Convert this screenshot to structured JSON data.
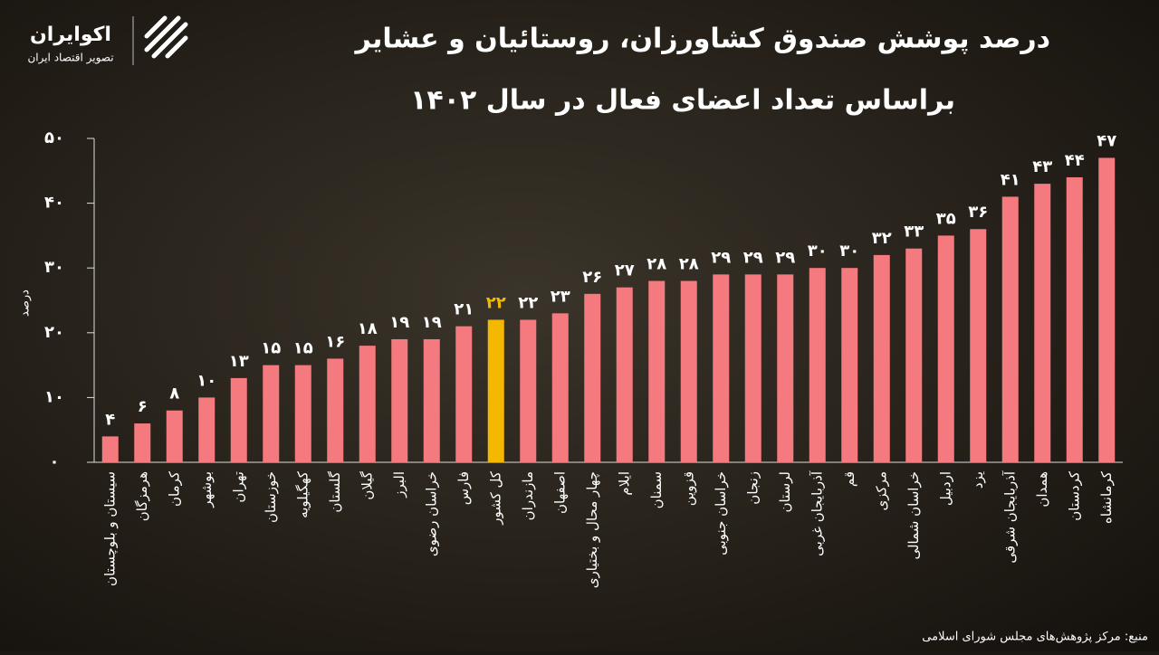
{
  "chart_data": {
    "type": "bar",
    "title": "درصد پوشش صندوق کشاورزان، روستائیان و عشایر",
    "subtitle": "براساس تعداد اعضای فعال در سال ۱۴۰۲",
    "y_label": "درصد",
    "source": "منبع: مرکز پژوهش‌های مجلس شورای اسلامی",
    "logo": {
      "name": "اکوایران",
      "tagline": "تصویر اقتصاد ایران"
    },
    "categories": [
      "سیستان و بلوچستان",
      "هرمزگان",
      "کرمان",
      "بوشهر",
      "تهران",
      "خوزستان",
      "کهگیلویه",
      "گلستان",
      "گیلان",
      "البرز",
      "خراسان رضوی",
      "فارس",
      "کل کشور",
      "مازندران",
      "اصفهان",
      "چهار محال و بختیاری",
      "ایلام",
      "سمنان",
      "قزوین",
      "خراسان جنوبی",
      "زنجان",
      "لرستان",
      "آذربایجان غربی",
      "قم",
      "مرکزی",
      "خراسان شمالی",
      "اردبیل",
      "یزد",
      "آذربایجان شرقی",
      "همدان",
      "کردستان",
      "کرمانشاه"
    ],
    "values": [
      4,
      6,
      8,
      10,
      13,
      15,
      15,
      16,
      18,
      19,
      19,
      21,
      22,
      22,
      23,
      26,
      27,
      28,
      28,
      29,
      29,
      29,
      30,
      30,
      32,
      33,
      35,
      36,
      41,
      43,
      44,
      47
    ],
    "value_labels": [
      "۴",
      "۶",
      "۸",
      "۱۰",
      "۱۳",
      "۱۵",
      "۱۵",
      "۱۶",
      "۱۸",
      "۱۹",
      "۱۹",
      "۲۱",
      "۲۲",
      "۲۲",
      "۲۳",
      "۲۶",
      "۲۷",
      "۲۸",
      "۲۸",
      "۲۹",
      "۲۹",
      "۲۹",
      "۳۰",
      "۳۰",
      "۳۲",
      "۳۳",
      "۳۵",
      "۳۶",
      "۴۱",
      "۴۳",
      "۴۴",
      "۴۷"
    ],
    "color": "#f47a7f",
    "highlight": {
      "index": 12,
      "color": "#f5b800"
    },
    "ylim": [
      0,
      50
    ],
    "yticks": [
      {
        "value": 0,
        "label": "۰"
      },
      {
        "value": 10,
        "label": "۱۰"
      },
      {
        "value": 20,
        "label": "۲۰"
      },
      {
        "value": 30,
        "label": "۳۰"
      },
      {
        "value": 40,
        "label": "۴۰"
      },
      {
        "value": 50,
        "label": "۵۰"
      }
    ],
    "grid": false
  }
}
